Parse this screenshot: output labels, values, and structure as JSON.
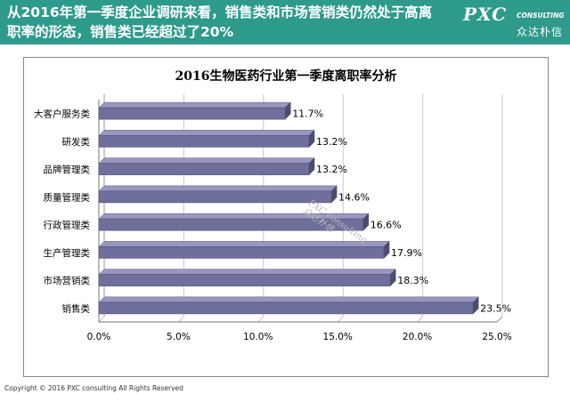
{
  "header": {
    "line1": "从2016年第一季度企业调研来看，销售类和市场营销类仍然处于高离",
    "line2": "职率的形态，销售类已经超过了20%"
  },
  "logo": {
    "brand": "PXC",
    "sub": "CONSULTING",
    "cn": "众达朴信"
  },
  "watermark": {
    "line1": "PXC consulting",
    "line2": "众达朴信"
  },
  "footer": "Copyright © 2016  PXC consulting All Rights Reserved",
  "colors": {
    "header_bg": "#2e9a8c",
    "bar_fill": "#6f6f9b",
    "bar_top": "#9797c0"
  },
  "chart_data": {
    "type": "bar",
    "orientation": "horizontal",
    "title": "2016生物医药行业第一季度离职率分析",
    "categories": [
      "大客户服务类",
      "研发类",
      "品牌管理类",
      "质量管理类",
      "行政管理类",
      "生产管理类",
      "市场营销类",
      "销售类"
    ],
    "values": [
      11.7,
      13.2,
      13.2,
      14.6,
      16.6,
      17.9,
      18.3,
      23.5
    ],
    "data_labels": [
      "11.7%",
      "13.2%",
      "13.2%",
      "14.6%",
      "16.6%",
      "17.9%",
      "18.3%",
      "23.5%"
    ],
    "x_ticks": [
      "0.0%",
      "5.0%",
      "10.0%",
      "15.0%",
      "20.0%",
      "25.0%"
    ],
    "xlim": [
      0,
      25
    ],
    "grid": true
  }
}
